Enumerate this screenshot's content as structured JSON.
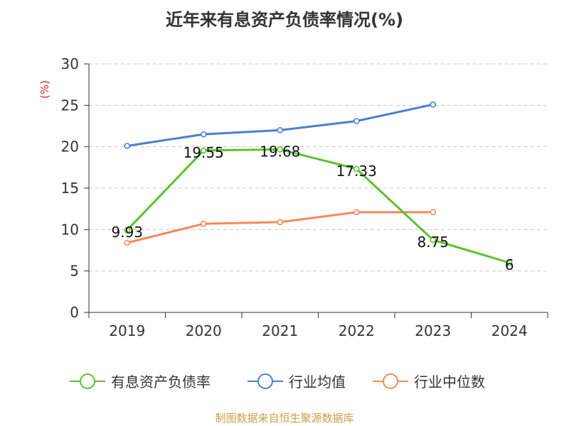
{
  "title": "近年来有息资产负债率情况(%)",
  "footer": "制图数据来自恒生聚源数据库",
  "chart_data": {
    "type": "line",
    "title": "近年来有息资产负债率情况(%)",
    "ylabel": "(%)",
    "categories": [
      "2019",
      "2020",
      "2021",
      "2022",
      "2023",
      "2024"
    ],
    "yticks": [
      0,
      5,
      10,
      15,
      20,
      25,
      30
    ],
    "ylim": [
      0,
      30
    ],
    "grid": true,
    "legend_position": "bottom",
    "series": [
      {
        "name": "有息资产负债率",
        "color": "#5cc22a",
        "values": [
          9.93,
          19.55,
          19.68,
          17.33,
          8.75,
          6
        ],
        "labels": [
          "9.93",
          "19.55",
          "19.68",
          "17.33",
          "8.75",
          "6"
        ]
      },
      {
        "name": "行业均值",
        "color": "#4a7fd6",
        "values": [
          20.1,
          21.5,
          22.0,
          23.1,
          25.1,
          null
        ]
      },
      {
        "name": "行业中位数",
        "color": "#f5895a",
        "values": [
          8.4,
          10.7,
          10.9,
          12.1,
          12.1,
          null
        ]
      }
    ]
  }
}
